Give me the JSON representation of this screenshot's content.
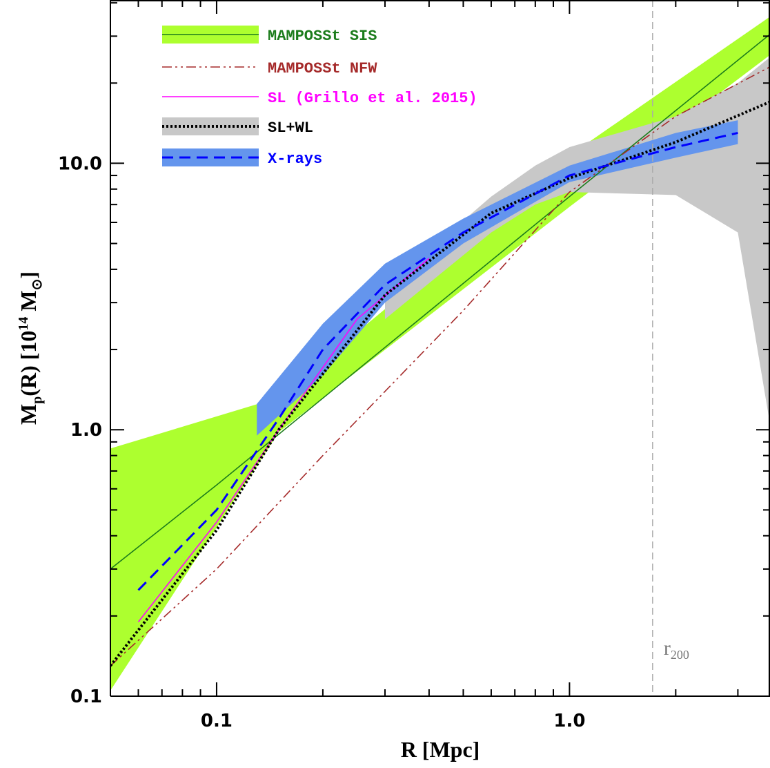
{
  "chart_data": {
    "type": "line",
    "log_x": true,
    "log_y": true,
    "xlim": [
      0.05,
      3.7
    ],
    "ylim": [
      0.1,
      41
    ],
    "xticks": [
      0.1,
      {
        "value": 1,
        "label": "1.0"
      }
    ],
    "yticks": [
      0.1,
      {
        "value": 1,
        "label": "1.0"
      },
      {
        "value": 10,
        "label": "10.0"
      }
    ],
    "xminor": [
      0.06,
      0.07,
      0.08,
      0.09,
      0.2,
      0.3,
      0.4,
      0.5,
      0.6,
      0.7,
      0.8,
      0.9,
      2,
      3
    ],
    "yminor": [
      0.2,
      0.3,
      0.4,
      0.5,
      0.6,
      0.7,
      0.8,
      0.9,
      2,
      3,
      4,
      5,
      6,
      7,
      8,
      9,
      20,
      30,
      40
    ],
    "xlabel": "R [Mpc]",
    "ylabel": [
      "M",
      "p",
      "(R) [10",
      "14",
      " M",
      "⊙",
      "]"
    ],
    "legend": "upper left",
    "series": [
      {
        "name": "MAMPOSSt SIS",
        "color": "#1c7c1c",
        "dash": "solid",
        "x": [
          0.05,
          0.1,
          1.0,
          3.7
        ],
        "values": [
          0.3,
          0.62,
          7.5,
          30.5
        ],
        "band": {
          "color": "#adff2f",
          "x": [
            0.05,
            0.15,
            1.0,
            3.7
          ],
          "lower": [
            0.105,
            0.98,
            6.86,
            25.5
          ],
          "upper": [
            0.85,
            1.32,
            10.7,
            35.5
          ]
        }
      },
      {
        "name": "MAMPOSSt NFW",
        "color": "#a52a2a",
        "dash": "dashdot",
        "x": [
          0.05,
          0.1,
          0.2,
          0.5,
          1.0,
          2.0,
          3.7
        ],
        "values": [
          0.13,
          0.3,
          0.8,
          2.8,
          7.8,
          15,
          23
        ]
      },
      {
        "name": "SL (Grillo et al. 2015)",
        "color": "#ff00ff",
        "dash": "solid",
        "x": [
          0.06,
          0.1,
          0.15,
          0.25,
          0.4
        ],
        "values": [
          0.19,
          0.45,
          1.0,
          2.6,
          4.4
        ]
      },
      {
        "name": "SL+WL",
        "color": "#000000",
        "dash": "dotted",
        "x": [
          0.05,
          0.1,
          0.15,
          0.3,
          0.6,
          1.0,
          2.0,
          3.7
        ],
        "values": [
          0.13,
          0.42,
          1.0,
          3.2,
          6.5,
          8.8,
          12,
          17
        ],
        "band": {
          "color": "#c8c8c8",
          "x": [
            0.3,
            0.6,
            0.8,
            1.0,
            2.0,
            3.0,
            3.7
          ],
          "lower": [
            2.6,
            5.5,
            7.0,
            7.8,
            7.6,
            5.5,
            1.05
          ],
          "upper": [
            3.4,
            7.5,
            9.8,
            11.5,
            15,
            20,
            25
          ]
        }
      },
      {
        "name": "X-rays",
        "color": "#0000ff",
        "dash": "dashed",
        "x": [
          0.06,
          0.1,
          0.15,
          0.2,
          0.3,
          0.5,
          1.0,
          2.0,
          3.0
        ],
        "values": [
          0.25,
          0.5,
          1.1,
          2.0,
          3.5,
          5.5,
          9.0,
          11.5,
          13
        ],
        "band": {
          "color": "#6495ed",
          "x": [
            0.13,
            0.2,
            0.3,
            0.5,
            1.0,
            2.0,
            3.0
          ],
          "lower": [
            0.95,
            1.6,
            3.0,
            5.0,
            8.5,
            10.5,
            11.8
          ],
          "upper": [
            1.25,
            2.5,
            4.2,
            6.2,
            9.8,
            13,
            14.5
          ]
        }
      }
    ],
    "vlines": [
      {
        "x": 1.72,
        "label": "r",
        "label_sub": "200"
      }
    ]
  }
}
